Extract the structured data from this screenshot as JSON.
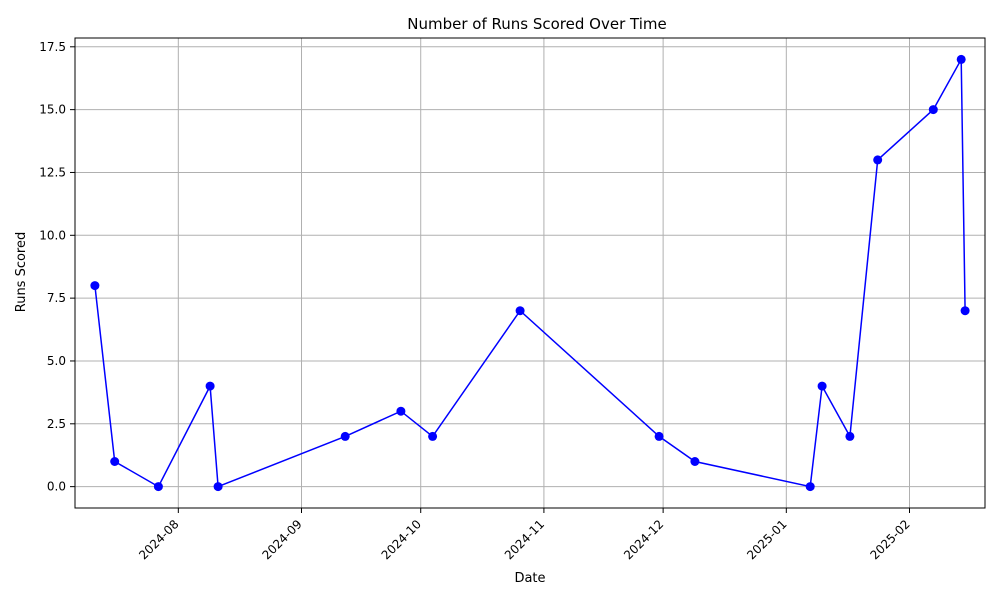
{
  "chart_data": {
    "type": "line",
    "title": "Number of Runs Scored Over Time",
    "xlabel": "Date",
    "ylabel": "Runs Scored",
    "x_ticks": [
      "2024-08",
      "2024-09",
      "2024-10",
      "2024-11",
      "2024-12",
      "2025-01",
      "2025-02"
    ],
    "y_ticks": [
      "0.0",
      "2.5",
      "5.0",
      "7.5",
      "10.0",
      "12.5",
      "15.0",
      "17.5"
    ],
    "ylim": [
      -0.85,
      17.85
    ],
    "xlim": [
      "2024-07-06",
      "2025-02-20"
    ],
    "grid": true,
    "line_color": "#0000ff",
    "series": [
      {
        "x": [
          "2024-07-11",
          "2024-07-16",
          "2024-07-27",
          "2024-08-09",
          "2024-08-11",
          "2024-09-12",
          "2024-09-26",
          "2024-10-04",
          "2024-10-26",
          "2024-11-30",
          "2024-12-09",
          "2025-01-07",
          "2025-01-10",
          "2025-01-17",
          "2025-01-24",
          "2025-02-07",
          "2025-02-14",
          "2025-02-15"
        ],
        "y": [
          8,
          1,
          0,
          4,
          0,
          2,
          3,
          2,
          7,
          2,
          1,
          0,
          4,
          2,
          13,
          15,
          17,
          7
        ]
      }
    ]
  }
}
